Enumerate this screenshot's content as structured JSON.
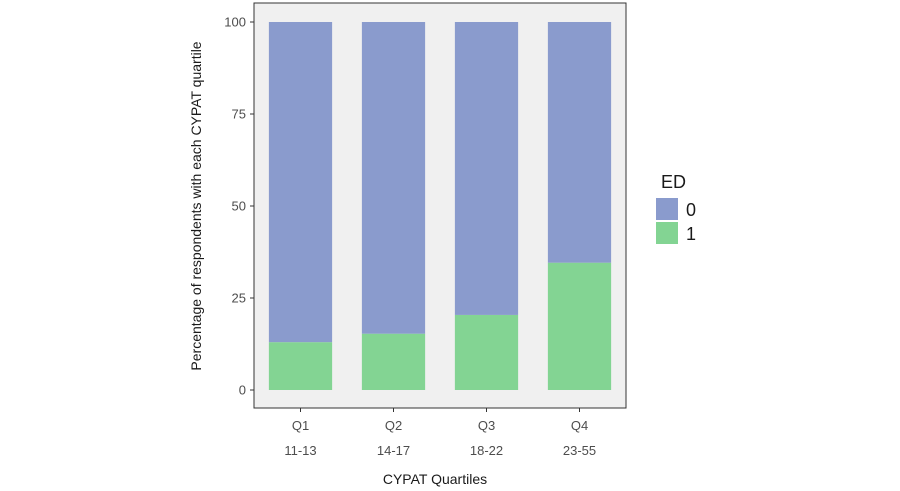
{
  "chart_data": {
    "type": "bar",
    "stacked": true,
    "title": "",
    "xlabel": "CYPAT Quartiles",
    "ylabel": "Percentage of respondents with each CYPAT quartile",
    "ylim": [
      0,
      100
    ],
    "yticks": [
      0,
      25,
      50,
      75,
      100
    ],
    "categories": [
      "Q1",
      "Q2",
      "Q3",
      "Q4"
    ],
    "category_ranges": [
      "11-13",
      "14-17",
      "18-22",
      "23-55"
    ],
    "series": [
      {
        "name": "1",
        "color": "#83d493",
        "values": [
          13,
          15.3,
          20.4,
          34.6
        ]
      },
      {
        "name": "0",
        "color": "#8a9bcd",
        "values": [
          87,
          84.7,
          79.6,
          65.4
        ]
      }
    ],
    "legend": {
      "title": "ED",
      "position": "right",
      "items": [
        {
          "label": "0",
          "color": "#8a9bcd"
        },
        {
          "label": "1",
          "color": "#83d493"
        }
      ]
    },
    "panel_background": "#f0f0f0"
  }
}
